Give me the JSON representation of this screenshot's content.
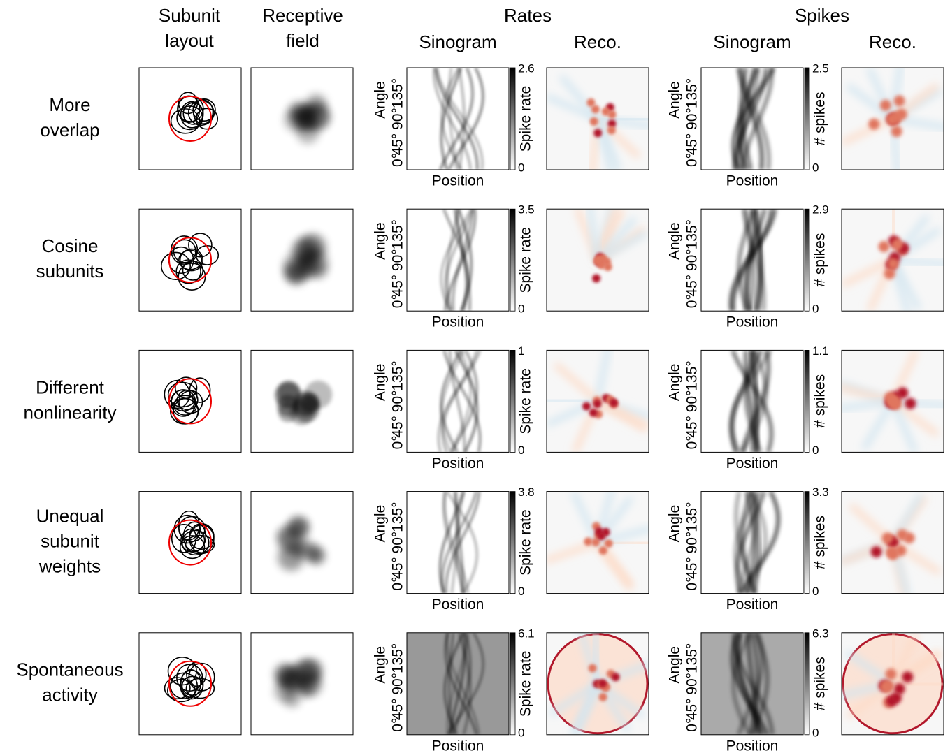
{
  "columns": [
    [
      "Subunit",
      "layout"
    ],
    [
      "Receptive",
      "field"
    ]
  ],
  "groups": [
    {
      "title": "Rates",
      "panels": [
        "Sinogram",
        "Reco."
      ],
      "colorbar_label": "Spike rate"
    },
    {
      "title": "Spikes",
      "panels": [
        "Sinogram",
        "Reco."
      ],
      "colorbar_label": "# spikes"
    }
  ],
  "axes": {
    "x_label": "Position",
    "y_label": "Angle",
    "angle_ticks": [
      "0°",
      "45°",
      "90°",
      "135°"
    ],
    "colorbar_min": "0"
  },
  "rows": [
    {
      "label": [
        "More",
        "overlap"
      ],
      "max": [
        "2.6",
        "2.5"
      ]
    },
    {
      "label": [
        "Cosine",
        "subunits"
      ],
      "max": [
        "3.5",
        "2.9"
      ]
    },
    {
      "label": [
        "Different",
        "nonlinearity"
      ],
      "max": [
        "1",
        "1.1"
      ]
    },
    {
      "label": [
        "Unequal",
        "subunit",
        "weights"
      ],
      "max": [
        "3.8",
        "3.3"
      ]
    },
    {
      "label": [
        "Spontaneous",
        "activity"
      ],
      "max": [
        "6.1",
        "6.3"
      ]
    }
  ]
}
